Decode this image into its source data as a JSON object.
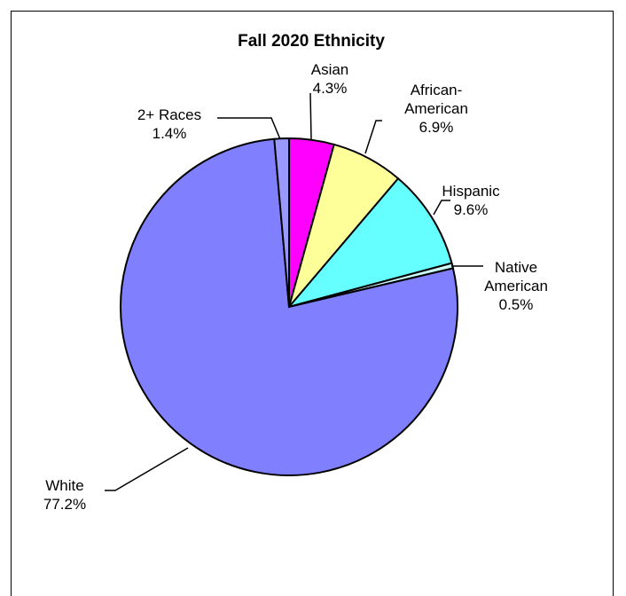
{
  "chart_data": {
    "type": "pie",
    "title": "Fall 2020 Ethnicity",
    "slices": [
      {
        "name": "Asian",
        "value": 4.3,
        "label": "4.3%",
        "color": "#ff00ff",
        "lines": [
          "Asian",
          "4.3%"
        ]
      },
      {
        "name": "African-American",
        "value": 6.9,
        "label": "6.9%",
        "color": "#ffff99",
        "lines": [
          "African-",
          "American",
          "6.9%"
        ]
      },
      {
        "name": "Hispanic",
        "value": 9.6,
        "label": "9.6%",
        "color": "#66ffff",
        "lines": [
          "Hispanic",
          "9.6%"
        ]
      },
      {
        "name": "Native American",
        "value": 0.5,
        "label": "0.5%",
        "color": "#ccffff",
        "lines": [
          "Native",
          "American",
          "0.5%"
        ]
      },
      {
        "name": "White",
        "value": 77.2,
        "label": "77.2%",
        "color": "#8080ff",
        "lines": [
          "White",
          "77.2%"
        ]
      },
      {
        "name": "2+ Races",
        "value": 1.4,
        "label": "1.4%",
        "color": "#9999ff",
        "lines": [
          "2+ Races",
          "1.4%"
        ]
      }
    ]
  }
}
